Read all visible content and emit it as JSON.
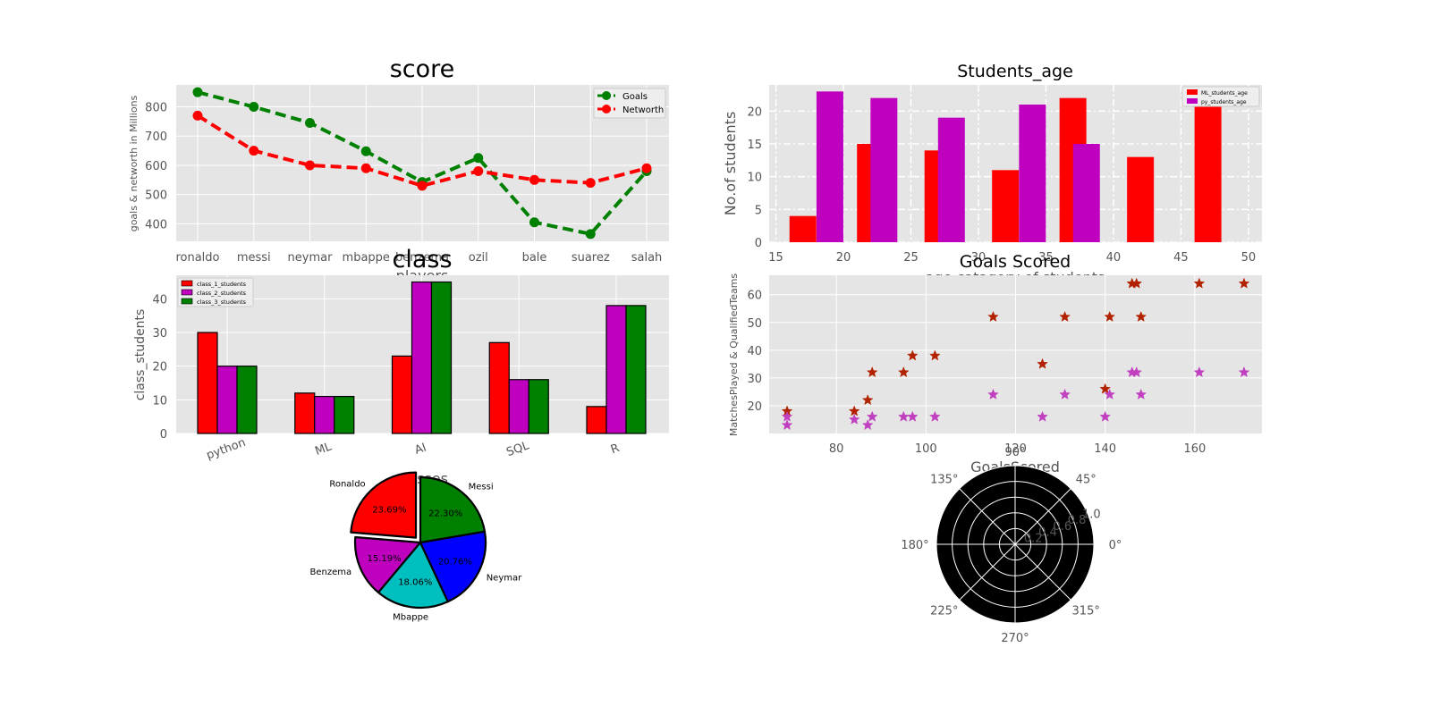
{
  "chart_data": [
    {
      "type": "line",
      "title": "score",
      "xlabel": "players",
      "ylabel": "goals & networth in Millions",
      "categories": [
        "ronaldo",
        "messi",
        "neymar",
        "mbappe",
        "benzema",
        "ozil",
        "bale",
        "suarez",
        "salah"
      ],
      "series": [
        {
          "name": "Goals",
          "color": "#008000",
          "values": [
            850,
            800,
            745,
            648,
            543,
            625,
            405,
            365,
            580
          ]
        },
        {
          "name": "Networth",
          "color": "#ff0000",
          "values": [
            770,
            650,
            600,
            590,
            530,
            580,
            550,
            540,
            590
          ]
        }
      ],
      "yticks": [
        400,
        500,
        600,
        700,
        800
      ],
      "ylim": [
        340,
        875
      ],
      "grid": true,
      "legend": "top-right"
    },
    {
      "type": "bar",
      "title": "Students_age",
      "xlabel": "age catagory of students",
      "ylabel": "No.of students",
      "series": [
        {
          "name": "ML_students_age",
          "color": "#ff0000",
          "x": [
            17,
            22,
            27,
            32,
            37,
            42,
            47
          ],
          "values": [
            4,
            15,
            14,
            11,
            22,
            13,
            21
          ]
        },
        {
          "name": "py_students_age",
          "color": "#bf00bf",
          "x": [
            19,
            23,
            28,
            34,
            38
          ],
          "values": [
            23,
            22,
            19,
            21,
            15
          ]
        }
      ],
      "xticks": [
        15,
        20,
        25,
        30,
        35,
        40,
        45,
        50
      ],
      "yticks": [
        0,
        5,
        10,
        15,
        20
      ],
      "xlim": [
        14.5,
        51
      ],
      "ylim": [
        0,
        24
      ],
      "grid": true,
      "legend": "top-right"
    },
    {
      "type": "bar",
      "title": "class",
      "xlabel": "classes",
      "ylabel": "class_students",
      "categories": [
        "python",
        "ML",
        "AI",
        "SQL",
        "R"
      ],
      "series": [
        {
          "name": "class_1_students",
          "color": "#ff0000",
          "values": [
            30,
            12,
            23,
            27,
            8
          ]
        },
        {
          "name": "class_2_students",
          "color": "#bf00bf",
          "values": [
            20,
            11,
            45,
            16,
            38
          ]
        },
        {
          "name": "class_3_students",
          "color": "#008000",
          "values": [
            20,
            11,
            45,
            16,
            38
          ]
        }
      ],
      "yticks": [
        0,
        10,
        20,
        30,
        40
      ],
      "ylim": [
        0,
        47
      ],
      "grid": true,
      "legend": "top-left"
    },
    {
      "type": "scatter",
      "title": "Goals Scored",
      "xlabel": "GoalsScored",
      "ylabel": "MatchesPlayed & QualifiedTeams",
      "series": [
        {
          "name": "MatchesPlayed",
          "color": "#b22200",
          "x": [
            69,
            84,
            87,
            88,
            95,
            97,
            102,
            115,
            126,
            131,
            140,
            141,
            146,
            147,
            148,
            161,
            171
          ],
          "y": [
            18,
            18,
            22,
            32,
            32,
            38,
            38,
            52,
            35,
            52,
            26,
            52,
            64,
            64,
            52,
            64,
            64
          ]
        },
        {
          "name": "QualifiedTeams",
          "color": "#c040c0",
          "x": [
            69,
            69,
            84,
            87,
            88,
            95,
            97,
            102,
            115,
            126,
            131,
            140,
            141,
            146,
            147,
            148,
            161,
            171
          ],
          "y": [
            13,
            16,
            15,
            13,
            16,
            16,
            16,
            16,
            24,
            16,
            24,
            16,
            24,
            32,
            32,
            24,
            32,
            32
          ]
        }
      ],
      "xticks": [
        80,
        100,
        120,
        140,
        160
      ],
      "yticks": [
        20,
        30,
        40,
        50,
        60
      ],
      "xlim": [
        65,
        175
      ],
      "ylim": [
        10,
        67
      ],
      "grid": true
    },
    {
      "type": "pie",
      "labels": [
        "Ronaldo",
        "Benzema",
        "Mbappe",
        "Neymar",
        "Messi"
      ],
      "values": [
        23.69,
        15.19,
        18.06,
        20.76,
        22.3
      ],
      "pct_labels": [
        "23.69%",
        "15.19%",
        "18.06%",
        "20.76%",
        "22.30%"
      ],
      "colors": [
        "#ff0000",
        "#bf00bf",
        "#00bfbf",
        "#0000ff",
        "#008000"
      ],
      "explode": [
        0.1,
        0,
        0,
        0,
        0
      ],
      "startangle": 90
    },
    {
      "type": "polar",
      "angle_ticks": [
        "0°",
        "45°",
        "90°",
        "135°",
        "180°",
        "225°",
        "270°",
        "315°"
      ],
      "radial_ticks": [
        "0.2",
        "0.4",
        "0.6",
        "0.8",
        "1.0"
      ],
      "background": "#000000"
    }
  ]
}
